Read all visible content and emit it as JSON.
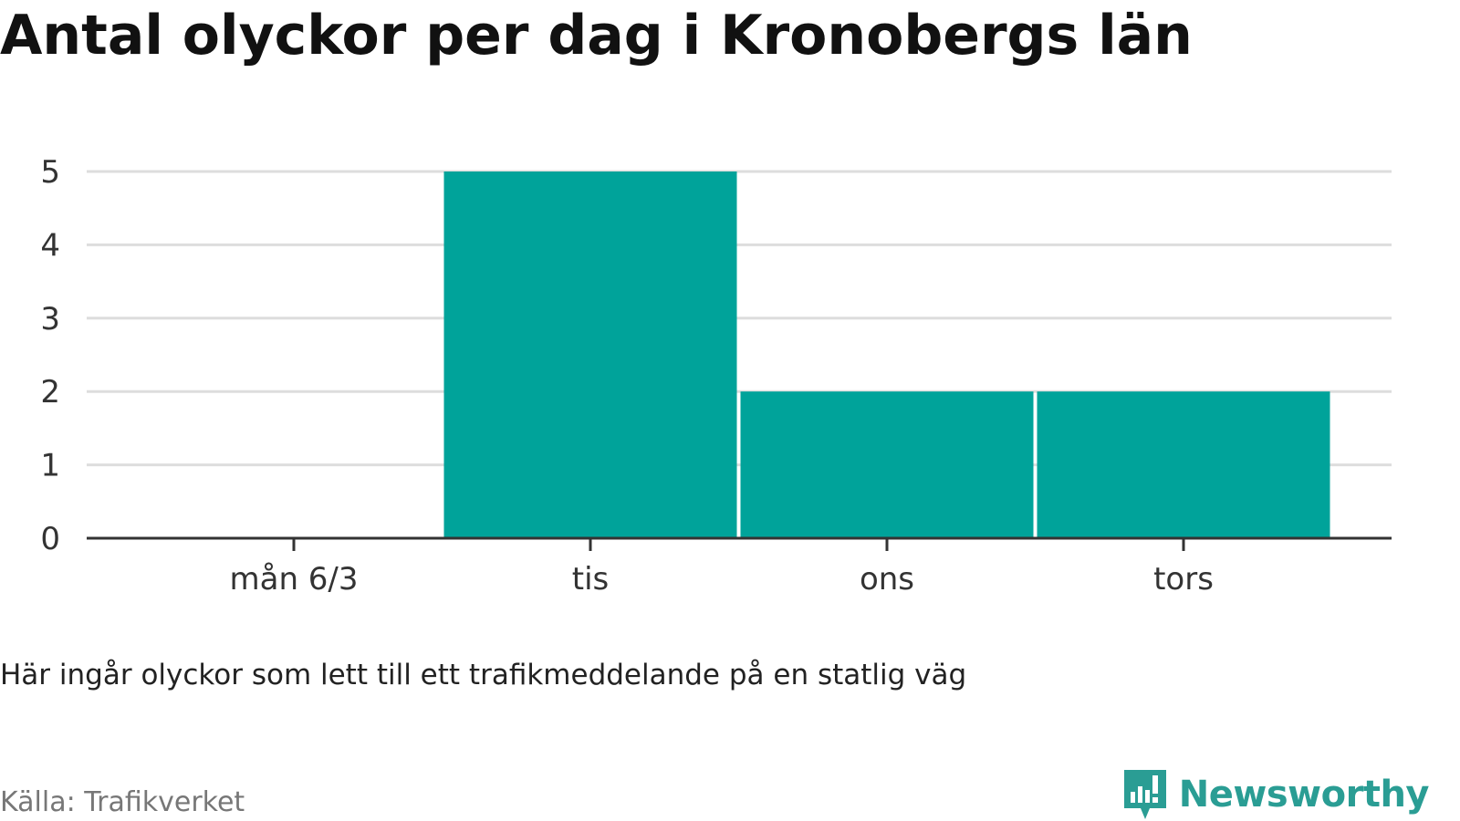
{
  "chart_data": {
    "type": "bar",
    "title": "Antal olyckor per dag i Kronobergs län",
    "categories": [
      "mån 6/3",
      "tis",
      "ons",
      "tors"
    ],
    "values": [
      0,
      5,
      2,
      2
    ],
    "ylim": [
      0,
      5
    ],
    "yticks": [
      0,
      1,
      2,
      3,
      4,
      5
    ],
    "xlabel": "",
    "ylabel": "",
    "grid": true,
    "bar_color": "#00a39a"
  },
  "note": "Här ingår olyckor som lett till ett trafikmeddelande på en statlig väg",
  "source": "Källa: Trafikverket",
  "brand": {
    "name": "Newsworthy",
    "icon": "newsworthy-logo-icon",
    "color": "#2a9d94"
  }
}
